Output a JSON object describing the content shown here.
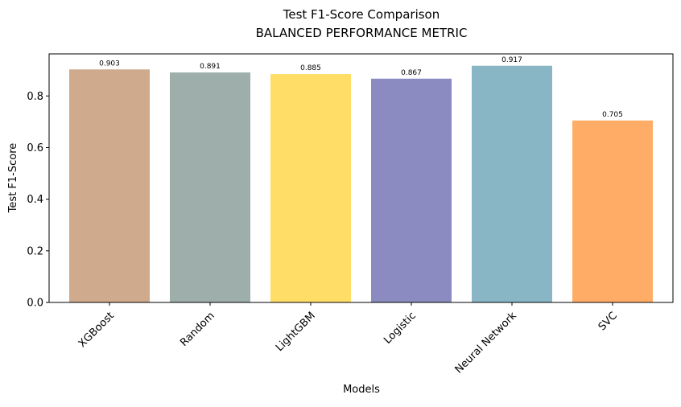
{
  "chart_data": {
    "type": "bar",
    "title": "Test F1-Score Comparison",
    "subtitle": "BALANCED PERFORMANCE METRIC",
    "xlabel": "Models",
    "ylabel": "Test F1-Score",
    "categories": [
      "XGBoost",
      "Random",
      "LightGBM",
      "Logistic",
      "Neural Network",
      "SVC"
    ],
    "values": [
      0.903,
      0.891,
      0.885,
      0.867,
      0.917,
      0.705
    ],
    "value_labels": [
      "0.903",
      "0.891",
      "0.885",
      "0.867",
      "0.917",
      "0.705"
    ],
    "colors": [
      "#cfaa8c",
      "#9daeab",
      "#ffdd66",
      "#8b8bc2",
      "#88b6c5",
      "#ffad66"
    ],
    "ylim": [
      0,
      0.963
    ],
    "yticks": [
      0.0,
      0.2,
      0.4,
      0.6,
      0.8
    ],
    "ytick_labels": [
      "0.0",
      "0.2",
      "0.4",
      "0.6",
      "0.8"
    ],
    "x_tick_rotation": 45,
    "grid": false,
    "legend": "none"
  }
}
